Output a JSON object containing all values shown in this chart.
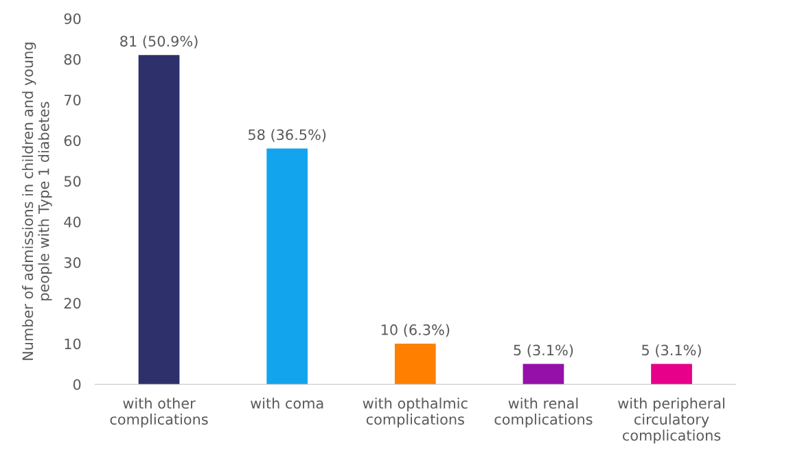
{
  "chart_data": {
    "type": "bar",
    "ylabel": "Number of admissions in children and young\npeople with Type 1 diabetes",
    "categories": [
      "with other\ncomplications",
      "with coma",
      "with opthalmic\ncomplications",
      "with renal\ncomplications",
      "with peripheral\ncirculatory\ncomplications"
    ],
    "values": [
      81,
      58,
      10,
      5,
      5
    ],
    "colors": [
      "#2e306b",
      "#12a5ee",
      "#ff7f00",
      "#9510a8",
      "#e6008a"
    ],
    "value_labels": [
      "81 (50.9%)",
      "58 (36.5%)",
      "10 (6.3%)",
      "5 (3.1%)",
      "5 (3.1%)"
    ],
    "ylim": [
      0,
      90
    ],
    "yticks": [
      0,
      10,
      20,
      30,
      40,
      50,
      60,
      70,
      80,
      90
    ],
    "grid": false
  }
}
